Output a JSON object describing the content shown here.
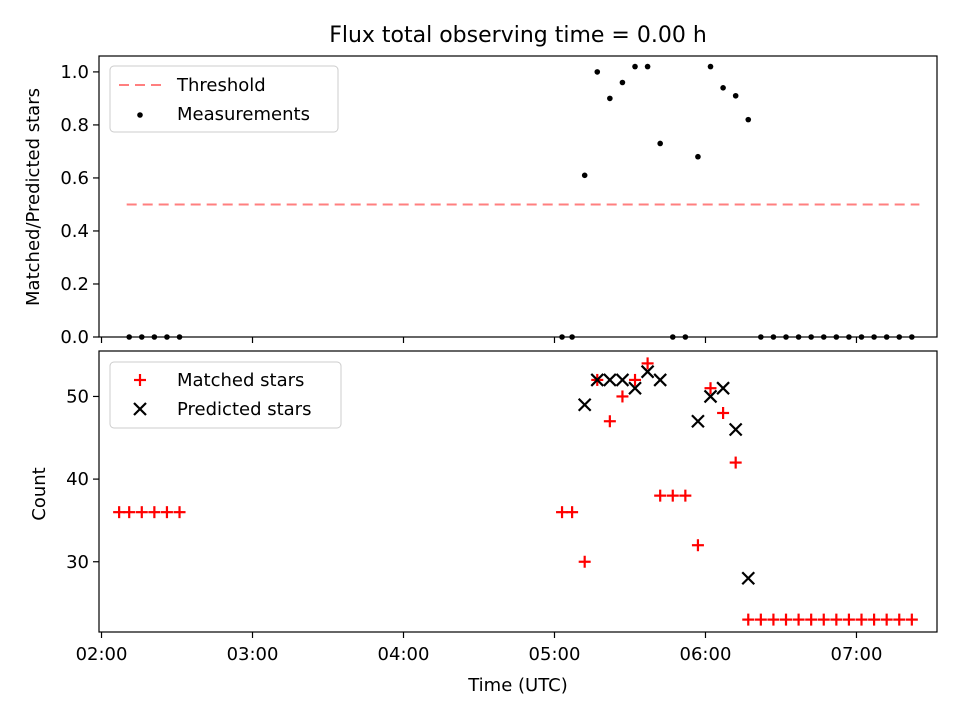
{
  "chart_data": [
    {
      "type": "scatter",
      "title": "Flux total observing time = 0.00 h",
      "ylabel": "Matched/Predicted stars",
      "xlabel": "",
      "xlim": [
        "01:59",
        "07:32"
      ],
      "ylim": [
        0,
        1.06
      ],
      "yticks": [
        "0.0",
        "0.2",
        "0.4",
        "0.6",
        "0.8",
        "1.0"
      ],
      "legend": {
        "position": "top-left",
        "entries": [
          "Threshold",
          "Measurements"
        ]
      },
      "threshold": {
        "name": "Threshold",
        "value": 0.5,
        "x_start": "02:10",
        "x_end": "07:25",
        "color": "#ff7f7f",
        "style": "dashed"
      },
      "series": [
        {
          "name": "Measurements",
          "color": "#000000",
          "marker": "dot",
          "points": [
            [
              "02:11",
              0
            ],
            [
              "02:16",
              0
            ],
            [
              "02:21",
              0
            ],
            [
              "02:26",
              0
            ],
            [
              "02:31",
              0
            ],
            [
              "05:03",
              0
            ],
            [
              "05:07",
              0
            ],
            [
              "05:12",
              0.61
            ],
            [
              "05:17",
              1.0
            ],
            [
              "05:22",
              0.9
            ],
            [
              "05:27",
              0.96
            ],
            [
              "05:32",
              1.02
            ],
            [
              "05:37",
              1.02
            ],
            [
              "05:42",
              0.73
            ],
            [
              "05:47",
              0
            ],
            [
              "05:52",
              0
            ],
            [
              "05:57",
              0.68
            ],
            [
              "06:02",
              1.02
            ],
            [
              "06:07",
              0.94
            ],
            [
              "06:12",
              0.91
            ],
            [
              "06:17",
              0.82
            ],
            [
              "06:22",
              0
            ],
            [
              "06:27",
              0
            ],
            [
              "06:32",
              0
            ],
            [
              "06:37",
              0
            ],
            [
              "06:42",
              0
            ],
            [
              "06:47",
              0
            ],
            [
              "06:52",
              0
            ],
            [
              "06:57",
              0
            ],
            [
              "07:02",
              0
            ],
            [
              "07:07",
              0
            ],
            [
              "07:12",
              0
            ],
            [
              "07:17",
              0
            ],
            [
              "07:22",
              0
            ]
          ]
        }
      ]
    },
    {
      "type": "scatter",
      "title": "",
      "ylabel": "Count",
      "xlabel": "Time (UTC)",
      "xlim": [
        "01:59",
        "07:32"
      ],
      "ylim": [
        21.5,
        55.5
      ],
      "yticks": [
        "30",
        "40",
        "50"
      ],
      "xticks": [
        "02:00",
        "03:00",
        "04:00",
        "05:00",
        "06:00",
        "07:00"
      ],
      "legend": {
        "position": "top-left",
        "entries": [
          "Matched stars",
          "Predicted stars"
        ]
      },
      "series": [
        {
          "name": "Matched stars",
          "color": "#ff0000",
          "marker": "plus",
          "points": [
            [
              "02:07",
              36
            ],
            [
              "02:11",
              36
            ],
            [
              "02:16",
              36
            ],
            [
              "02:21",
              36
            ],
            [
              "02:26",
              36
            ],
            [
              "02:31",
              36
            ],
            [
              "05:03",
              36
            ],
            [
              "05:07",
              36
            ],
            [
              "05:12",
              30
            ],
            [
              "05:17",
              52
            ],
            [
              "05:22",
              47
            ],
            [
              "05:27",
              50
            ],
            [
              "05:32",
              52
            ],
            [
              "05:37",
              54
            ],
            [
              "05:42",
              38
            ],
            [
              "05:47",
              38
            ],
            [
              "05:52",
              38
            ],
            [
              "05:57",
              32
            ],
            [
              "06:02",
              51
            ],
            [
              "06:07",
              48
            ],
            [
              "06:12",
              42
            ],
            [
              "06:17",
              23
            ],
            [
              "06:22",
              23
            ],
            [
              "06:27",
              23
            ],
            [
              "06:32",
              23
            ],
            [
              "06:37",
              23
            ],
            [
              "06:42",
              23
            ],
            [
              "06:47",
              23
            ],
            [
              "06:52",
              23
            ],
            [
              "06:57",
              23
            ],
            [
              "07:02",
              23
            ],
            [
              "07:07",
              23
            ],
            [
              "07:12",
              23
            ],
            [
              "07:17",
              23
            ],
            [
              "07:22",
              23
            ]
          ]
        },
        {
          "name": "Predicted stars",
          "color": "#000000",
          "marker": "x",
          "points": [
            [
              "05:12",
              49
            ],
            [
              "05:17",
              52
            ],
            [
              "05:22",
              52
            ],
            [
              "05:27",
              52
            ],
            [
              "05:32",
              51
            ],
            [
              "05:37",
              53
            ],
            [
              "05:42",
              52
            ],
            [
              "05:57",
              47
            ],
            [
              "06:02",
              50
            ],
            [
              "06:07",
              51
            ],
            [
              "06:12",
              46
            ],
            [
              "06:17",
              28
            ]
          ]
        }
      ]
    }
  ]
}
